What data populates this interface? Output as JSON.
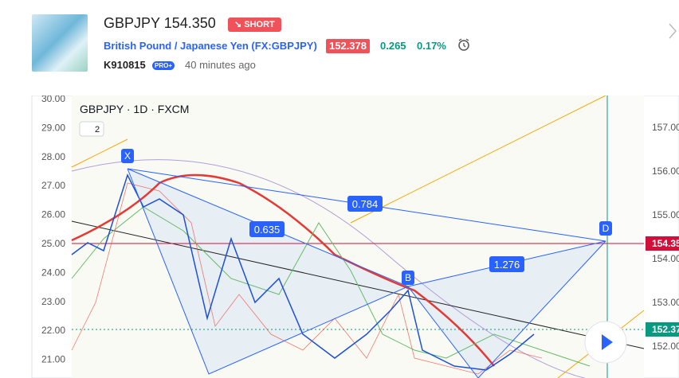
{
  "header": {
    "symbol_price": "GBPJPY 154.350",
    "badge": "SHORT",
    "instrument": "British Pound / Japanese Yen (FX:GBPJPY)",
    "last_price": "152.378",
    "change": "0.265",
    "change_percent": "0.17%",
    "author": "K910815",
    "author_badge": "PRO+",
    "time": "40 minutes ago"
  },
  "chart": {
    "legend": "GBPJPY · 1D · FXCM",
    "indicators_count": "2",
    "left_axis": [
      "30.00",
      "29.00",
      "28.00",
      "27.00",
      "26.00",
      "25.00",
      "24.00",
      "23.00",
      "22.00",
      "21.00"
    ],
    "right_axis": [
      "157.00",
      "156.00",
      "155.00",
      "154.00",
      "153.00",
      "152.00"
    ],
    "price_labels": [
      "154.35",
      "152.37"
    ],
    "pattern_points": [
      "X",
      "B",
      "D"
    ],
    "ratios": [
      "0.635",
      "0.784",
      "1.276"
    ]
  }
}
